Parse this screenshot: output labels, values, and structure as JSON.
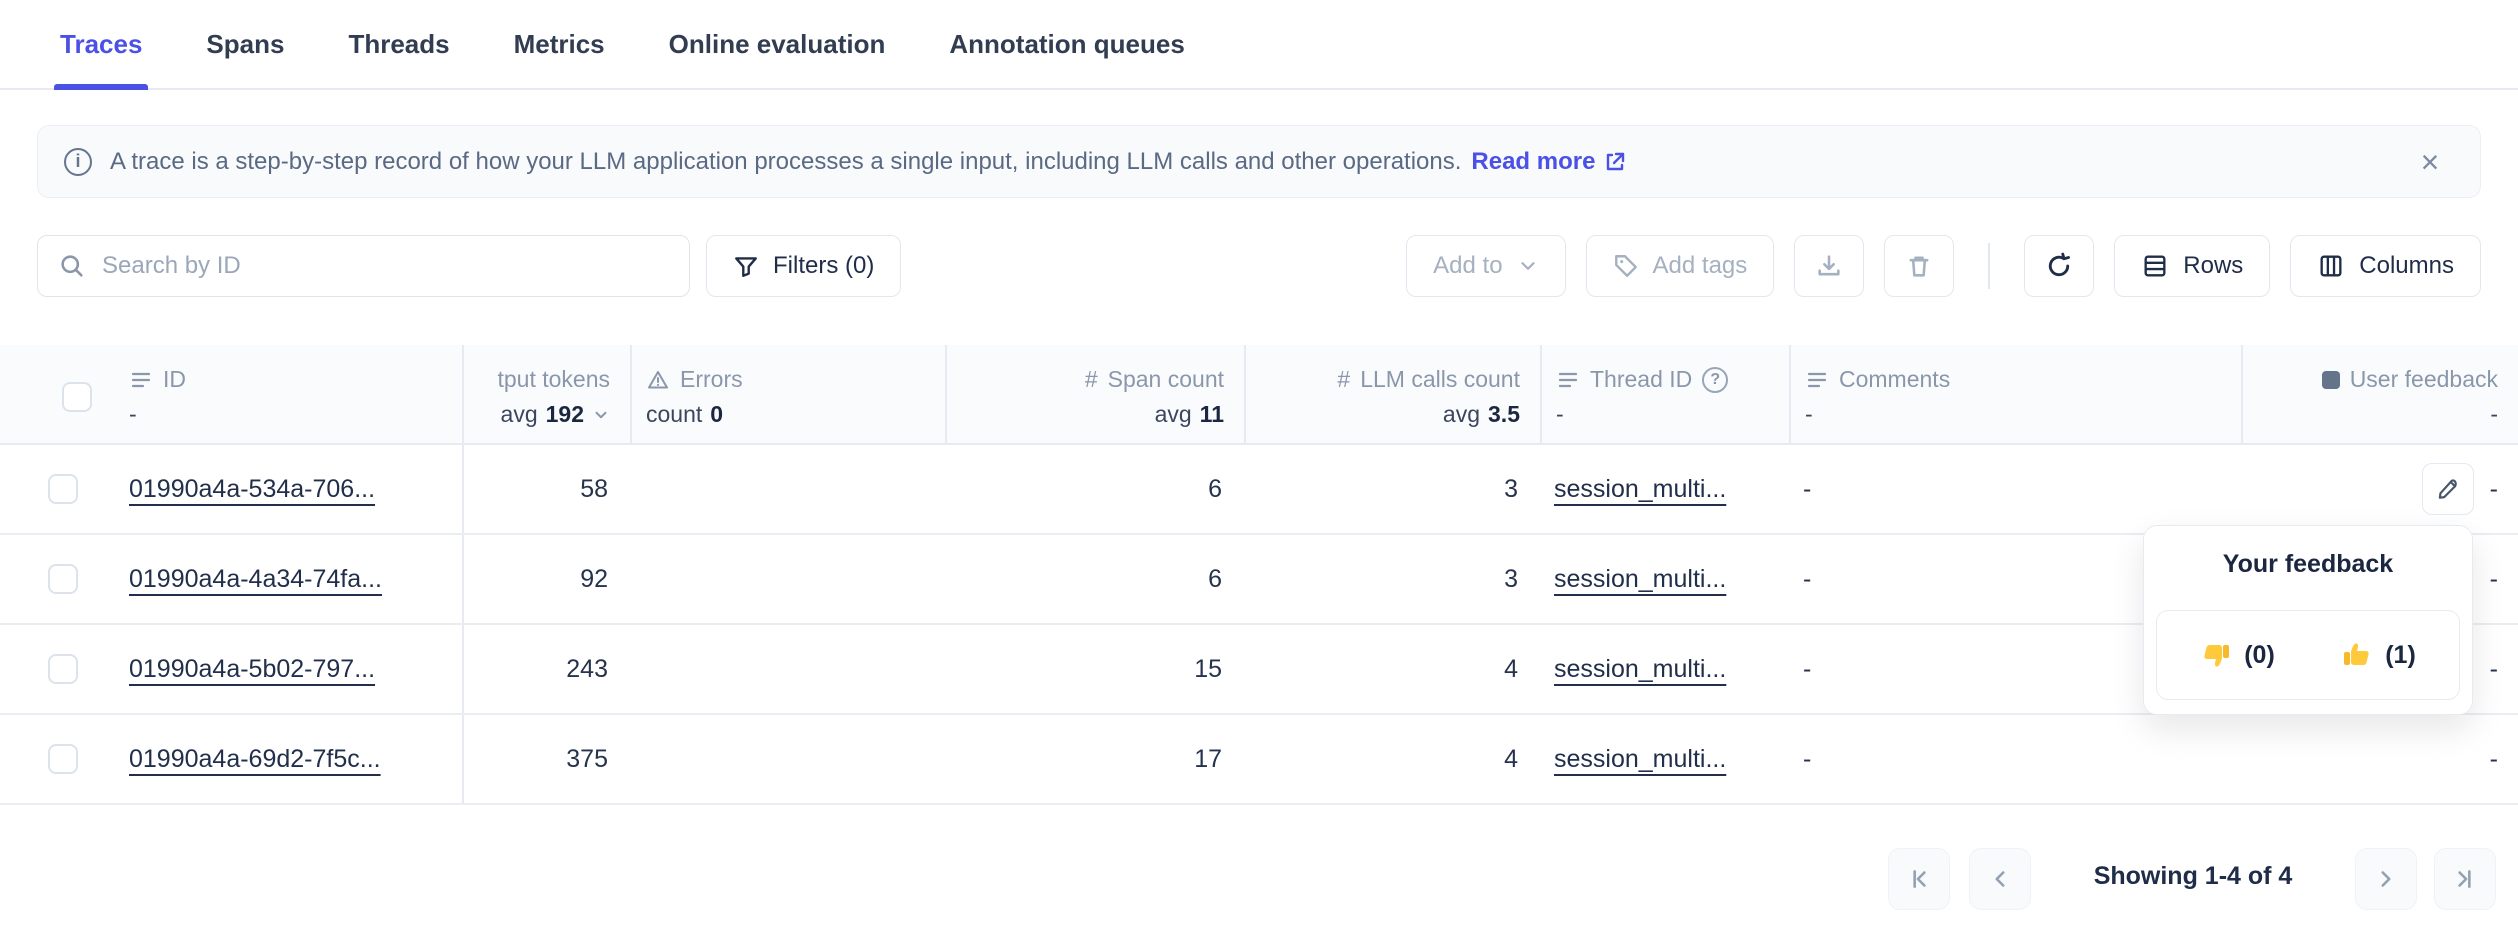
{
  "colors": {
    "accent": "#4B51E4",
    "text_dark": "#1B2740",
    "text_muted": "#8A97AB"
  },
  "tabs": {
    "items": [
      {
        "label": "Traces",
        "active": true
      },
      {
        "label": "Spans"
      },
      {
        "label": "Threads"
      },
      {
        "label": "Metrics"
      },
      {
        "label": "Online evaluation"
      },
      {
        "label": "Annotation queues"
      }
    ]
  },
  "banner": {
    "text": "A trace is a step-by-step record of how your LLM application processes a single input, including LLM calls and other operations.",
    "link_label": "Read more",
    "close_label": "×"
  },
  "toolbar": {
    "search_placeholder": "Search by ID",
    "filters_label": "Filters (0)",
    "add_to_label": "Add to",
    "add_tags_label": "Add tags",
    "rows_label": "Rows",
    "columns_label": "Columns"
  },
  "table": {
    "columns": {
      "id": {
        "label": "ID",
        "sub": "-"
      },
      "output_tokens": {
        "label": "tput tokens",
        "agg_prefix": "avg",
        "agg_value": "192"
      },
      "errors": {
        "label": "Errors",
        "agg_prefix": "count",
        "agg_value": "0"
      },
      "span_count": {
        "label": "Span count",
        "agg_prefix": "avg",
        "agg_value": "11"
      },
      "llm_calls": {
        "label": "LLM calls count",
        "agg_prefix": "avg",
        "agg_value": "3.5"
      },
      "thread_id": {
        "label": "Thread ID",
        "sub": "-"
      },
      "comments": {
        "label": "Comments",
        "sub": "-"
      },
      "user_feedback": {
        "label": "User feedback",
        "sub": "-"
      }
    },
    "rows": [
      {
        "id": "01990a4a-534a-706...",
        "output_tokens": "58",
        "span_count": "6",
        "llm_calls": "3",
        "thread_id": "session_multi...",
        "comments": "-",
        "user_feedback": "-",
        "has_edit_button": true
      },
      {
        "id": "01990a4a-4a34-74fa...",
        "output_tokens": "92",
        "span_count": "6",
        "llm_calls": "3",
        "thread_id": "session_multi...",
        "comments": "-",
        "user_feedback": "-"
      },
      {
        "id": "01990a4a-5b02-797...",
        "output_tokens": "243",
        "span_count": "15",
        "llm_calls": "4",
        "thread_id": "session_multi...",
        "comments": "-",
        "user_feedback": "-"
      },
      {
        "id": "01990a4a-69d2-7f5c...",
        "output_tokens": "375",
        "span_count": "17",
        "llm_calls": "4",
        "thread_id": "session_multi...",
        "comments": "-",
        "user_feedback": "-"
      }
    ]
  },
  "feedback_popover": {
    "title": "Your feedback",
    "thumbs_down_count": "(0)",
    "thumbs_up_count": "(1)"
  },
  "pagination": {
    "summary": "Showing 1-4 of 4"
  }
}
